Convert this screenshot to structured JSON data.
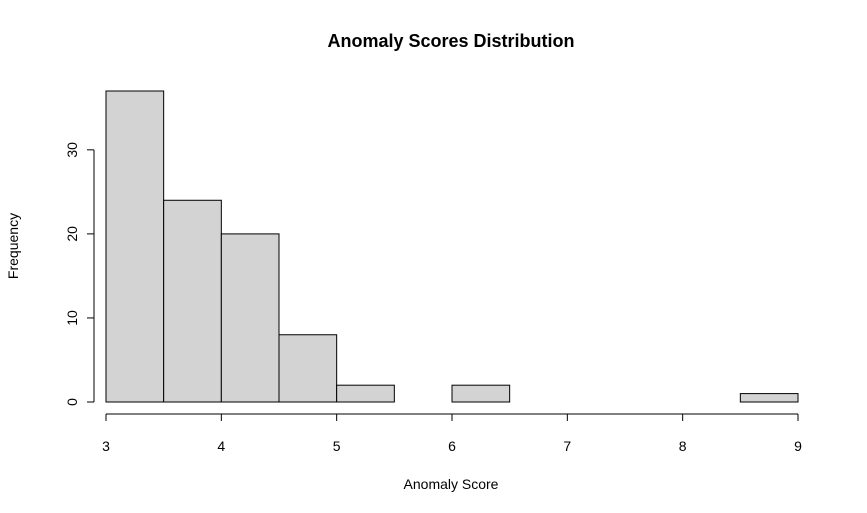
{
  "chart_data": {
    "type": "bar",
    "title": "Anomaly Scores Distribution",
    "xlabel": "Anomaly Score",
    "ylabel": "Frequency",
    "bins": [
      {
        "start": 3.0,
        "end": 3.5,
        "count": 37
      },
      {
        "start": 3.5,
        "end": 4.0,
        "count": 24
      },
      {
        "start": 4.0,
        "end": 4.5,
        "count": 20
      },
      {
        "start": 4.5,
        "end": 5.0,
        "count": 8
      },
      {
        "start": 5.0,
        "end": 5.5,
        "count": 2
      },
      {
        "start": 5.5,
        "end": 6.0,
        "count": 0
      },
      {
        "start": 6.0,
        "end": 6.5,
        "count": 2
      },
      {
        "start": 6.5,
        "end": 7.0,
        "count": 0
      },
      {
        "start": 7.0,
        "end": 7.5,
        "count": 0
      },
      {
        "start": 7.5,
        "end": 8.0,
        "count": 0
      },
      {
        "start": 8.0,
        "end": 8.5,
        "count": 0
      },
      {
        "start": 8.5,
        "end": 9.0,
        "count": 1
      }
    ],
    "xlim": [
      3,
      9
    ],
    "ylim": [
      0,
      37
    ],
    "x_ticks": [
      "3",
      "4",
      "5",
      "6",
      "7",
      "8",
      "9"
    ],
    "y_ticks": [
      "0",
      "10",
      "20",
      "30"
    ],
    "bar_color": "#d3d3d3",
    "grid": false
  }
}
